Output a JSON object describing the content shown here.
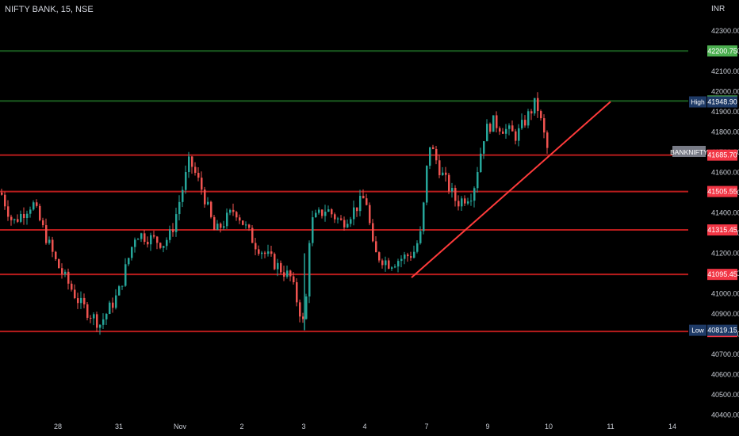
{
  "header": {
    "symbol": "NIFTY BANK, 15, NSE",
    "currency": "INR"
  },
  "colors": {
    "bull": "#26a69a",
    "bear": "#ef5350",
    "support": "#b71c1c",
    "resistance": "#1b5e20",
    "trendline": "#ff3b3b"
  },
  "chart_data": {
    "type": "candlestick",
    "title": "NIFTY BANK, 15, NSE",
    "ylim": [
      40400,
      42350
    ],
    "y_ticks": [
      42300,
      42200,
      42100,
      42000,
      41900,
      41800,
      41700,
      41600,
      41500,
      41400,
      41300,
      41200,
      41100,
      41000,
      40900,
      40800,
      40700,
      40600,
      40500,
      40400
    ],
    "x_ticks": [
      "28",
      "31",
      "Nov",
      "2",
      "3",
      "4",
      "7",
      "9",
      "10",
      "11",
      "14"
    ],
    "grid": false,
    "horizontal_levels": [
      {
        "value": 42200.75,
        "label": "42200.75",
        "kind": "resistance"
      },
      {
        "value": 41953.4,
        "label": "41953.40",
        "kind": "resistance"
      },
      {
        "value": 41685.7,
        "label": "41685.70",
        "kind": "support"
      },
      {
        "value": 41505.55,
        "label": "41505.55",
        "kind": "support"
      },
      {
        "value": 41315.45,
        "label": "41315.45",
        "kind": "support"
      },
      {
        "value": 41095.45,
        "label": "41095.45",
        "kind": "support"
      },
      {
        "value": 40813.0,
        "label": "40813.00",
        "kind": "support"
      }
    ],
    "markers": [
      {
        "name": "High",
        "value": 41948.9,
        "label": "41948.90"
      },
      {
        "name": "Low",
        "value": 40819.15,
        "label": "40819.15"
      },
      {
        "name": "BANKNIFTY",
        "value": 41700,
        "label": ""
      }
    ],
    "trendline": [
      {
        "x": "7",
        "y": 41080
      },
      {
        "x": "11",
        "y": 41950
      }
    ],
    "price_path": [
      [
        "28",
        41500
      ],
      [
        "28",
        41350
      ],
      [
        "28",
        41450
      ],
      [
        "28",
        41150
      ],
      [
        "28",
        40950
      ],
      [
        "28",
        40850
      ],
      [
        "31",
        41000
      ],
      [
        "31",
        41300
      ],
      [
        "31",
        41250
      ],
      [
        "Nov",
        41300
      ],
      [
        "Nov",
        41660
      ],
      [
        "Nov",
        41500
      ],
      [
        "2",
        41300
      ],
      [
        "2",
        41420
      ],
      [
        "2",
        41250
      ],
      [
        "3",
        41150
      ],
      [
        "3",
        41080
      ],
      [
        "3",
        40830
      ],
      [
        "3",
        41350
      ],
      [
        "3",
        41420
      ],
      [
        "4",
        41350
      ],
      [
        "4",
        41480
      ],
      [
        "4",
        41200
      ],
      [
        "4",
        41150
      ],
      [
        "7",
        41200
      ],
      [
        "7",
        41300
      ],
      [
        "7",
        41750
      ],
      [
        "7",
        41600
      ],
      [
        "7",
        41450
      ],
      [
        "9",
        41500
      ],
      [
        "9",
        41800
      ],
      [
        "9",
        41850
      ],
      [
        "9",
        41780
      ],
      [
        "10",
        41950
      ],
      [
        "10",
        41700
      ]
    ]
  }
}
